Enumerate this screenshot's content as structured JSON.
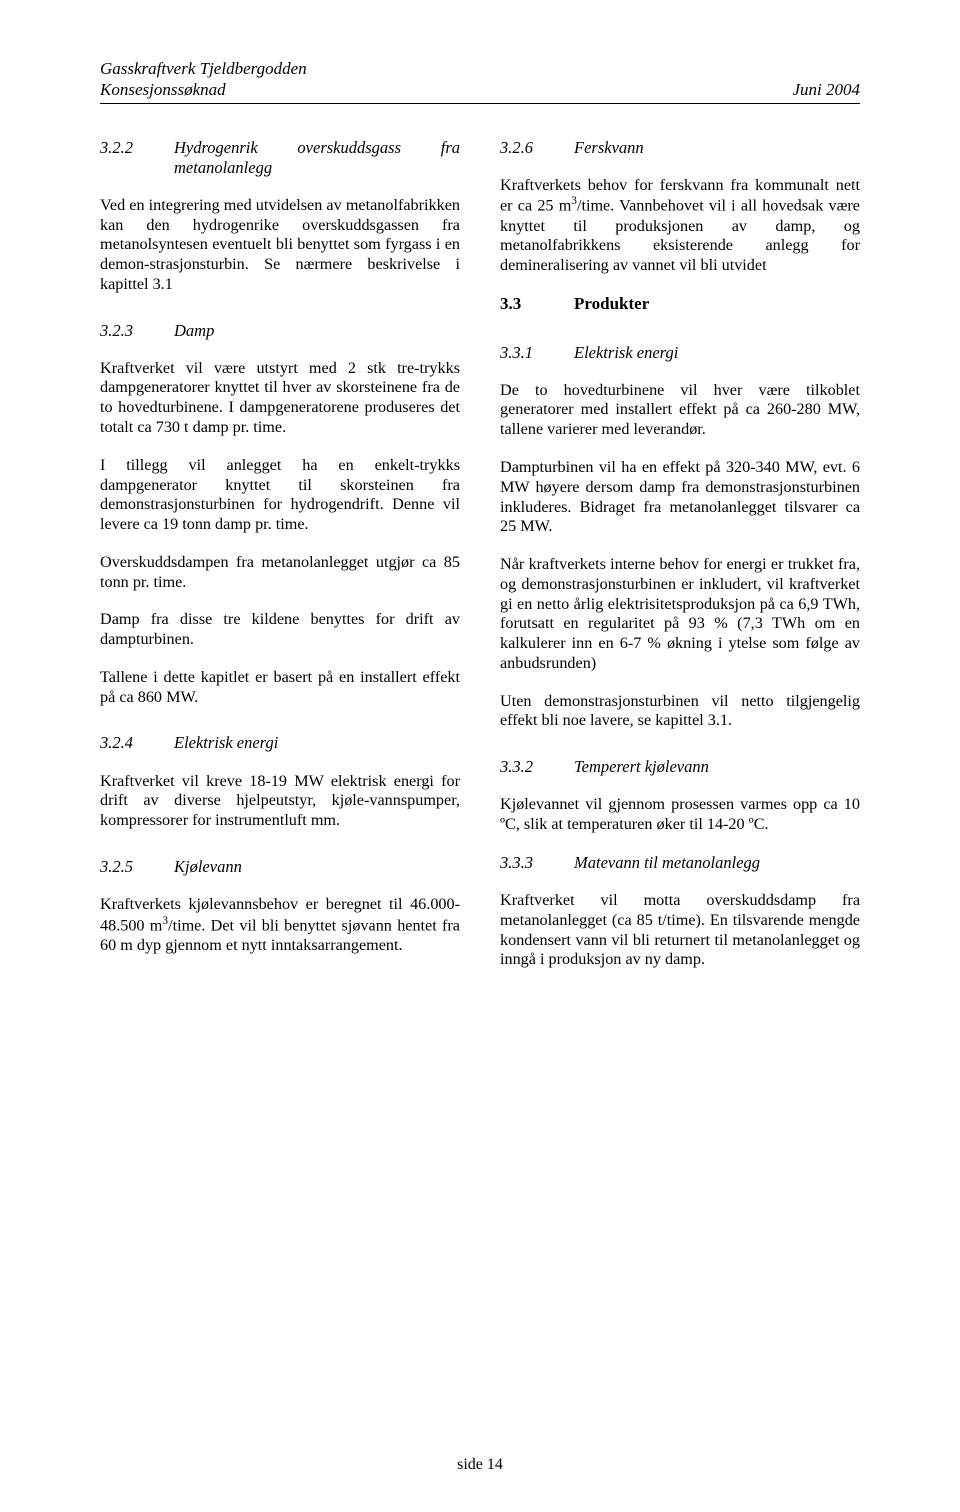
{
  "header": {
    "line1": "Gasskraftverk Tjeldbergodden",
    "line2_left": "Konsesjonssøknad",
    "line2_right": "Juni 2004"
  },
  "left": {
    "s322_num": "3.2.2",
    "s322_title": "Hydrogenrik overskuddsgass fra metanolanlegg",
    "s322_p1": "Ved en integrering med utvidelsen av metanolfabrikken kan den hydrogenrike overskuddsgassen fra metanolsyntesen eventuelt bli benyttet som fyrgass i en demon-strasjonsturbin. Se nærmere beskrivelse i kapittel 3.1",
    "s323_num": "3.2.3",
    "s323_title": "Damp",
    "s323_p1": "Kraftverket vil være utstyrt med 2 stk tre-trykks dampgeneratorer knyttet til hver av skorsteinene fra de to hovedturbinene. I dampgeneratorene produseres det totalt ca 730 t damp pr. time.",
    "s323_p2": "I tillegg vil anlegget ha en enkelt-trykks dampgenerator knyttet til skorsteinen fra demonstrasjonsturbinen for hydrogendrift. Denne vil levere ca 19 tonn damp pr. time.",
    "s323_p3": "Overskuddsdampen fra metanolanlegget utgjør ca  85 tonn pr. time.",
    "s323_p4": "Damp fra disse tre kildene benyttes for drift av dampturbinen.",
    "s323_p5": "Tallene i dette kapitlet er basert på en installert effekt på ca 860 MW.",
    "s324_num": "3.2.4",
    "s324_title": "Elektrisk energi",
    "s324_p1": "Kraftverket vil kreve 18-19 MW elektrisk energi for drift av diverse hjelpeutstyr, kjøle-vannspumper, kompressorer for instrumentluft mm.",
    "s325_num": "3.2.5",
    "s325_title": "Kjølevann",
    "s325_p1_a": "Kraftverkets kjølevannsbehov er beregnet til 46.000-48.500 m",
    "s325_p1_b": "/time. Det vil bli benyttet sjøvann hentet fra 60 m dyp gjennom et nytt inntaksarrangement."
  },
  "right": {
    "s326_num": "3.2.6",
    "s326_title": "Ferskvann",
    "s326_p1_a": "Kraftverkets behov for ferskvann fra kommunalt nett er ca 25 m",
    "s326_p1_b": "/time. Vannbehovet vil i all hovedsak være knyttet til produksjonen av damp, og metanolfabrikkens eksisterende anlegg for demineralisering av vannet vil bli utvidet",
    "s33_num": "3.3",
    "s33_title": "Produkter",
    "s331_num": "3.3.1",
    "s331_title": "Elektrisk energi",
    "s331_p1": "De to hovedturbinene vil hver være tilkoblet generatorer med installert effekt på ca 260-280 MW, tallene varierer med leverandør.",
    "s331_p2": "Dampturbinen vil ha en effekt på 320-340 MW, evt. 6 MW høyere dersom damp fra demonstrasjonsturbinen inkluderes. Bidraget fra metanolanlegget tilsvarer ca 25 MW.",
    "s331_p3": "Når kraftverkets interne behov for energi er trukket fra, og demonstrasjonsturbinen er inkludert, vil kraftverket gi en netto årlig elektrisitetsproduksjon på ca 6,9 TWh, forutsatt en regularitet på 93 % (7,3 TWh om en kalkulerer inn en 6-7 % økning i ytelse som følge av anbudsrunden)",
    "s331_p4": "Uten demonstrasjonsturbinen vil netto tilgjengelig effekt bli noe lavere, se kapittel 3.1.",
    "s332_num": "3.3.2",
    "s332_title": "Temperert kjølevann",
    "s332_p1": "Kjølevannet vil gjennom prosessen varmes opp ca 10 ºC, slik at temperaturen øker til 14-20 ºC.",
    "s333_num": "3.3.3",
    "s333_title": "Matevann til metanolanlegg",
    "s333_p1": "Kraftverket vil motta overskuddsdamp fra metanolanlegget (ca 85 t/time). En tilsvarende mengde kondensert vann vil bli returnert til metanolanlegget og inngå i produksjon av ny damp."
  },
  "footer": "side 14"
}
